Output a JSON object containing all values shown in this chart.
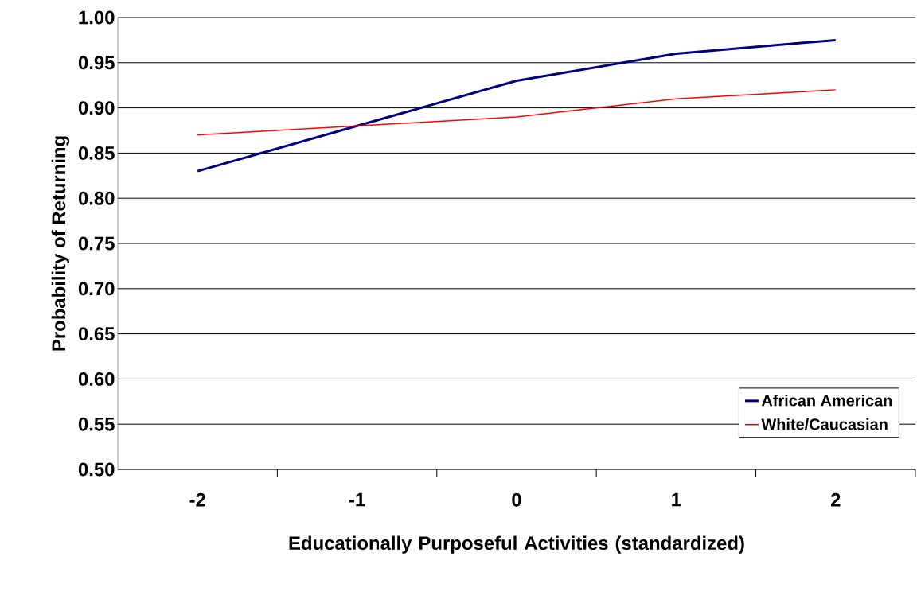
{
  "chart_data": {
    "type": "line",
    "xlabel": "Educationally Purposeful Activities (standardized)",
    "ylabel": "Probability of Returning",
    "categories": [
      "-2",
      "-1",
      "0",
      "1",
      "2"
    ],
    "series": [
      {
        "name": "African American",
        "color": "#000080",
        "values": [
          0.83,
          0.88,
          0.93,
          0.96,
          0.975
        ]
      },
      {
        "name": "White/Caucasian",
        "color": "#ff0000",
        "values": [
          0.87,
          0.88,
          0.89,
          0.91,
          0.92
        ]
      }
    ],
    "ylim": [
      0.5,
      1.0
    ],
    "yticks": [
      {
        "value": 0.5,
        "label": "0.50"
      },
      {
        "value": 0.55,
        "label": "0.55"
      },
      {
        "value": 0.6,
        "label": "0.60"
      },
      {
        "value": 0.65,
        "label": "0.65"
      },
      {
        "value": 0.7,
        "label": "0.70"
      },
      {
        "value": 0.75,
        "label": "0.75"
      },
      {
        "value": 0.8,
        "label": "0.80"
      },
      {
        "value": 0.85,
        "label": "0.85"
      },
      {
        "value": 0.9,
        "label": "0.90"
      },
      {
        "value": 0.95,
        "label": "0.95"
      },
      {
        "value": 1.0,
        "label": "1.00"
      }
    ],
    "grid": "y",
    "legend": "bottom right",
    "marker": "none",
    "line_style": "solid"
  }
}
